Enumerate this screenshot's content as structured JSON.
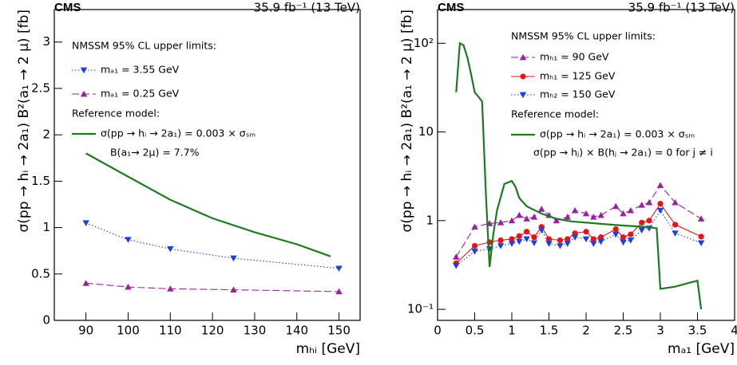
{
  "chart_data": [
    {
      "type": "line",
      "experiment": "CMS",
      "lumi": "35.9 fb⁻¹ (13 TeV)",
      "x_label": "mₕᵢ [GeV]",
      "y_label": "σ(pp → hᵢ → 2a₁) B²(a₁ → 2 μ) [fb]",
      "xlim": [
        82.5,
        155
      ],
      "ylim": [
        0,
        3.35
      ],
      "xticks": [
        90,
        100,
        110,
        120,
        130,
        140,
        150
      ],
      "yticks": [
        0,
        0.5,
        1,
        1.5,
        2,
        2.5,
        3
      ],
      "annotations": [
        "NMSSM 95% CL upper limits:",
        "Reference model:",
        "B(a₁→ 2μ) = 7.7%"
      ],
      "series": [
        {
          "name": "mₐ₁ = 3.55 GeV",
          "color": "#1f3fe0",
          "line_style": "dotted",
          "marker": "triangle-down",
          "x": [
            90,
            100,
            110,
            125,
            150
          ],
          "values": [
            1.05,
            0.87,
            0.77,
            0.67,
            0.56
          ]
        },
        {
          "name": "mₐ₁ = 0.25 GeV",
          "color": "#9b1fa0",
          "line_style": "dashed",
          "marker": "triangle-up",
          "x": [
            90,
            100,
            110,
            125,
            150
          ],
          "values": [
            0.4,
            0.36,
            0.34,
            0.33,
            0.31
          ]
        },
        {
          "name": "σ(pp → hᵢ → 2a₁) = 0.003 × σₛₘ",
          "color": "#1f7a1f",
          "line_style": "solid",
          "marker": "none",
          "x": [
            90,
            100,
            110,
            120,
            130,
            140,
            148
          ],
          "values": [
            1.8,
            1.55,
            1.3,
            1.1,
            0.95,
            0.82,
            0.69
          ]
        }
      ]
    },
    {
      "type": "line",
      "experiment": "CMS",
      "lumi": "35.9 fb⁻¹ (13 TeV)",
      "x_label": "mₐ₁ [GeV]",
      "y_label": "σ(pp → hᵢ → 2a₁) B²(a₁ → 2 μ) [fb]",
      "xlim": [
        0,
        4
      ],
      "ylim": [
        0.075,
        240
      ],
      "log_y": true,
      "xticks": [
        0,
        0.5,
        1,
        1.5,
        2,
        2.5,
        3,
        3.5,
        4
      ],
      "yticks": [
        {
          "value": 0.1,
          "label": "10⁻¹"
        },
        1,
        10,
        {
          "value": 100,
          "label": "10²"
        }
      ],
      "annotations": [
        "NMSSM 95% CL upper limits:",
        "Reference model:",
        "σ(pp → hⱼ) × B(hⱼ → 2a₁) = 0 for j ≠ i"
      ],
      "series": [
        {
          "name": "mₕ₁ =   90 GeV",
          "color": "#9b1fa0",
          "line_style": "dashed",
          "marker": "triangle-up",
          "x": [
            0.25,
            0.5,
            0.7,
            0.85,
            1.0,
            1.1,
            1.2,
            1.3,
            1.4,
            1.5,
            1.6,
            1.75,
            1.85,
            2.0,
            2.1,
            2.2,
            2.4,
            2.5,
            2.6,
            2.75,
            2.85,
            3.0,
            3.2,
            3.55
          ],
          "values": [
            0.39,
            0.85,
            0.93,
            0.95,
            1.0,
            1.15,
            1.05,
            1.1,
            1.35,
            1.15,
            1.0,
            1.1,
            1.3,
            1.2,
            1.1,
            1.15,
            1.45,
            1.2,
            1.3,
            1.5,
            1.6,
            2.5,
            1.6,
            1.05
          ]
        },
        {
          "name": "mₕ₁ = 125 GeV",
          "color": "#e8131a",
          "line_style": "solid",
          "marker": "circle",
          "x": [
            0.25,
            0.5,
            0.7,
            0.85,
            1.0,
            1.1,
            1.2,
            1.3,
            1.4,
            1.5,
            1.65,
            1.75,
            1.85,
            2.0,
            2.1,
            2.2,
            2.4,
            2.5,
            2.6,
            2.75,
            2.85,
            3.0,
            3.2,
            3.55
          ],
          "values": [
            0.33,
            0.52,
            0.57,
            0.6,
            0.62,
            0.67,
            0.75,
            0.65,
            0.85,
            0.62,
            0.6,
            0.62,
            0.72,
            0.75,
            0.62,
            0.65,
            0.8,
            0.65,
            0.7,
            0.95,
            1.0,
            1.55,
            0.9,
            0.66
          ]
        },
        {
          "name": "mₕ₂ = 150 GeV",
          "color": "#1f3fe0",
          "line_style": "dotted",
          "marker": "triangle-down",
          "x": [
            0.25,
            0.5,
            0.7,
            0.85,
            1.0,
            1.1,
            1.2,
            1.3,
            1.4,
            1.5,
            1.65,
            1.75,
            1.85,
            2.0,
            2.1,
            2.2,
            2.4,
            2.5,
            2.6,
            2.75,
            2.85,
            3.0,
            3.2,
            3.55
          ],
          "values": [
            0.31,
            0.45,
            0.48,
            0.52,
            0.55,
            0.58,
            0.62,
            0.56,
            0.78,
            0.55,
            0.52,
            0.55,
            0.65,
            0.62,
            0.55,
            0.58,
            0.7,
            0.57,
            0.6,
            0.78,
            0.82,
            1.3,
            0.72,
            0.56
          ]
        },
        {
          "name": "σ(pp → hᵢ → 2a₁) = 0.003 × σₛₘ",
          "color": "#1f7a1f",
          "line_style": "solid",
          "marker": "none",
          "x": [
            0.25,
            0.3,
            0.35,
            0.4,
            0.45,
            0.5,
            0.55,
            0.6,
            0.65,
            0.7,
            0.75,
            0.8,
            0.9,
            1.0,
            1.05,
            1.1,
            1.2,
            1.4,
            1.6,
            1.8,
            2.0,
            2.2,
            2.5,
            2.8,
            2.95,
            3.0,
            3.2,
            3.4,
            3.5,
            3.55
          ],
          "values": [
            28,
            100,
            95,
            70,
            45,
            28,
            25,
            22,
            2,
            0.3,
            0.7,
            1.3,
            2.6,
            2.8,
            2.4,
            1.8,
            1.45,
            1.2,
            1.05,
            0.98,
            0.95,
            0.92,
            0.88,
            0.85,
            0.82,
            0.17,
            0.18,
            0.2,
            0.21,
            0.1
          ]
        }
      ]
    }
  ]
}
